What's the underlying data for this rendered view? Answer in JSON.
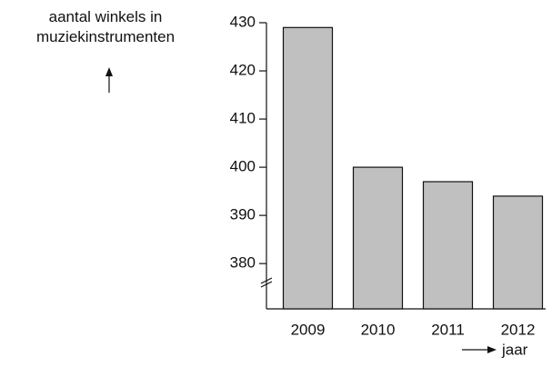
{
  "chart_data": {
    "type": "bar",
    "ylabel": "aantal winkels in muziekinstrumenten",
    "xlabel": "jaar",
    "categories": [
      "2009",
      "2010",
      "2011",
      "2012"
    ],
    "values": [
      429,
      400,
      397,
      394
    ],
    "color": "#c0c0c0",
    "ylim": [
      370.6,
      430
    ],
    "yticks": [
      380,
      390,
      400,
      410,
      420,
      430
    ]
  }
}
